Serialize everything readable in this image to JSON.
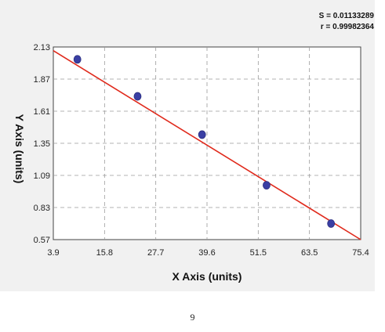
{
  "stats": {
    "s_label": "S = 0.01133289",
    "r_label": "r = 0.99982364"
  },
  "chart_data": {
    "type": "scatter",
    "title": "",
    "xlabel": "X Axis (units)",
    "ylabel": "Y Axis (units)",
    "xlim": [
      3.9,
      75.4
    ],
    "ylim": [
      0.57,
      2.13
    ],
    "x_ticks": [
      "3.9",
      "15.8",
      "27.7",
      "39.6",
      "51.5",
      "63.5",
      "75.4"
    ],
    "y_ticks": [
      "0.57",
      "0.83",
      "1.09",
      "1.35",
      "1.61",
      "1.87",
      "2.13"
    ],
    "grid": true,
    "points": [
      {
        "x": 9.5,
        "y": 2.03
      },
      {
        "x": 23.5,
        "y": 1.73
      },
      {
        "x": 38.5,
        "y": 1.42
      },
      {
        "x": 53.5,
        "y": 1.01
      },
      {
        "x": 68.5,
        "y": 0.7
      }
    ],
    "fit_line": {
      "x1": 3.9,
      "y1": 2.1,
      "x2": 75.4,
      "y2": 0.57
    },
    "colors": {
      "point": "#3a3fa4",
      "point_outline": "#2d3080",
      "fit": "#e02a1c",
      "grid": "#9a9a9a"
    }
  },
  "page_number": "9"
}
